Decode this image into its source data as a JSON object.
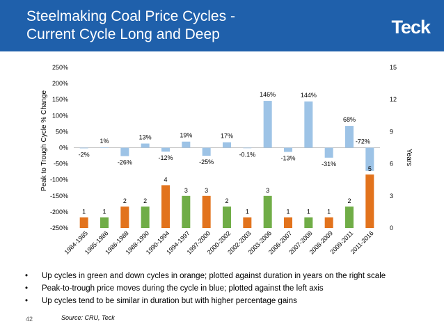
{
  "header": {
    "title_line1": "Steelmaking Coal Price Cycles -",
    "title_line2": "Current Cycle Long and Deep",
    "logo_text": "Teck",
    "background": "#1f60ab"
  },
  "bullets": [
    "Up cycles in green and down cycles in orange; plotted against duration in years on the right scale",
    "Peak-to-trough price moves during the cycle in blue; plotted against the left axis",
    "Up cycles tend to be similar in duration but with higher percentage gains"
  ],
  "footer": {
    "page_number": "42",
    "source": "Source: CRU, Teck"
  },
  "chart_data": {
    "type": "bar",
    "ylabel_left": "Peak to Trough Cycle % Change",
    "ylabel_right": "Years",
    "left_ticks": [
      "250%",
      "200%",
      "150%",
      "100%",
      "50%",
      "0%",
      "-50%",
      "-100%",
      "-150%",
      "-200%",
      "-250%"
    ],
    "right_ticks": [
      "15",
      "12",
      "9",
      "6",
      "3",
      "0"
    ],
    "ylim_left": [
      -250,
      250
    ],
    "ylim_right": [
      0,
      15
    ],
    "categories": [
      "1984-1985",
      "1985-1986",
      "1986-1988",
      "1988-1990",
      "1990-1994",
      "1994-1997",
      "1997-2000",
      "2000-2002",
      "2002-2003",
      "2003-2006",
      "2006-2007",
      "2007-2008",
      "2008-2009",
      "2009-2011",
      "2011-2016"
    ],
    "price_change": {
      "values": [
        -2,
        1,
        -26,
        13,
        -12,
        19,
        -25,
        17,
        -0.1,
        146,
        -13,
        144,
        -31,
        68,
        -72
      ],
      "labels": [
        "-2%",
        "1%",
        "-26%",
        "13%",
        "-12%",
        "19%",
        "-25%",
        "17%",
        "-0.1%",
        "146%",
        "-13%",
        "144%",
        "-31%",
        "68%",
        "-72%"
      ],
      "color": "#9dc3e6"
    },
    "duration": {
      "values": [
        1,
        1,
        2,
        2,
        4,
        3,
        3,
        2,
        1,
        3,
        1,
        1,
        1,
        2,
        5
      ],
      "cycle": [
        "down",
        "up",
        "down",
        "up",
        "down",
        "up",
        "down",
        "up",
        "down",
        "up",
        "down",
        "up",
        "down",
        "up",
        "down"
      ],
      "up_color": "#70ad47",
      "down_color": "#e2731d"
    }
  }
}
